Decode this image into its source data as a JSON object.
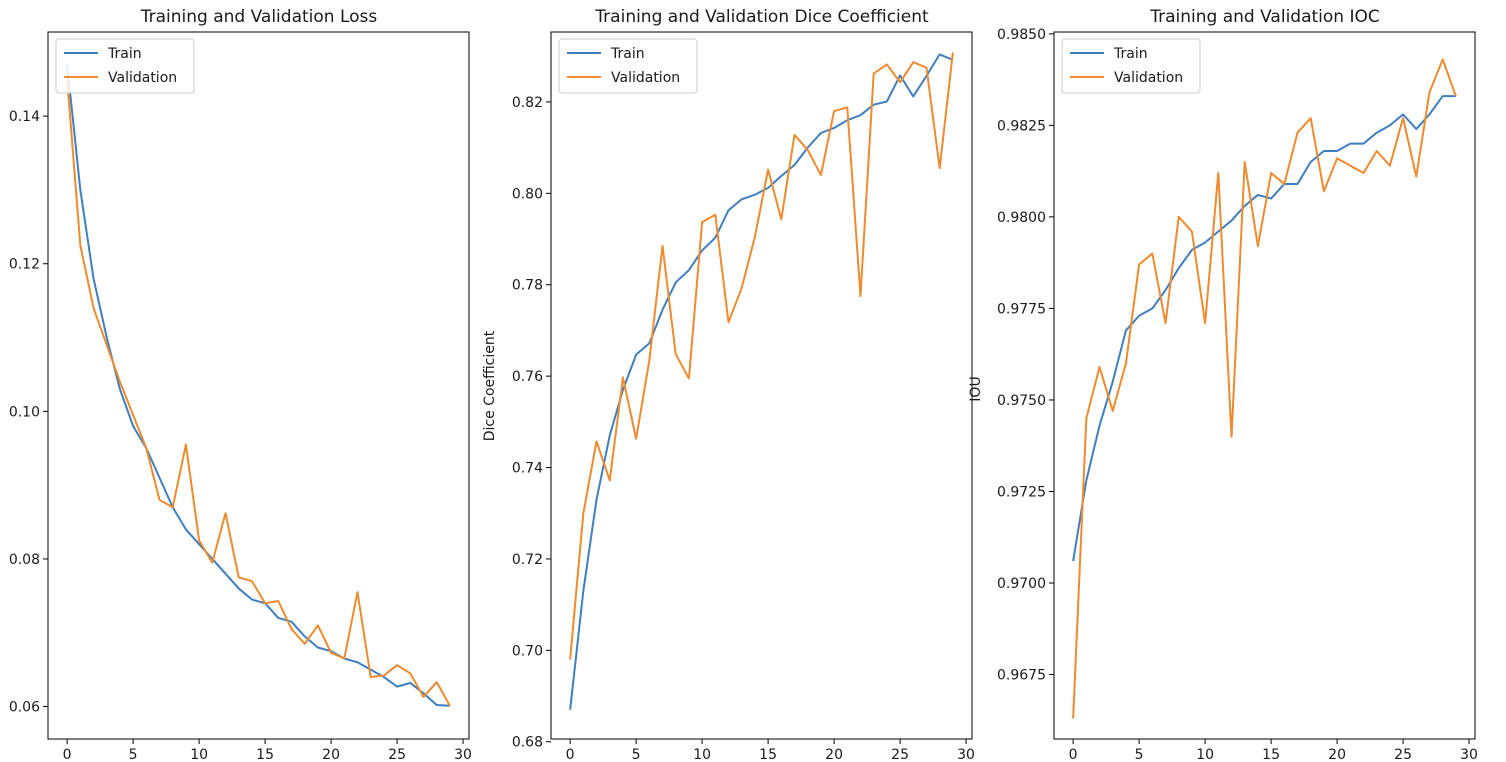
{
  "chart_data": [
    {
      "type": "line",
      "title": "Training and Validation Loss",
      "xlabel": "",
      "ylabel": "",
      "xlim": [
        -1.45,
        30.45
      ],
      "ylim": [
        0.0556,
        0.1514
      ],
      "xticks": [
        0,
        5,
        10,
        15,
        20,
        25,
        30
      ],
      "yticks": [
        0.06,
        0.08,
        0.1,
        0.12,
        0.14
      ],
      "ytick_labels": [
        "0.06",
        "0.08",
        "0.10",
        "0.12",
        "0.14"
      ],
      "legend": "top-left",
      "grid": false,
      "x": [
        0,
        1,
        2,
        3,
        4,
        5,
        6,
        7,
        8,
        9,
        10,
        11,
        12,
        13,
        14,
        15,
        16,
        17,
        18,
        19,
        20,
        21,
        22,
        23,
        24,
        25,
        26,
        27,
        28,
        29
      ],
      "series": [
        {
          "name": "Train",
          "color": "#3f7fbf",
          "values": [
            0.147,
            0.13,
            0.118,
            0.11,
            0.103,
            0.098,
            0.095,
            0.091,
            0.087,
            0.084,
            0.082,
            0.08,
            0.078,
            0.076,
            0.0745,
            0.074,
            0.072,
            0.0715,
            0.0695,
            0.068,
            0.0675,
            0.0665,
            0.066,
            0.065,
            0.064,
            0.0627,
            0.0632,
            0.0618,
            0.0602,
            0.0601
          ]
        },
        {
          "name": "Validation",
          "color": "#ef8a2e",
          "values": [
            0.145,
            0.1225,
            0.114,
            0.109,
            0.104,
            0.0995,
            0.095,
            0.088,
            0.087,
            0.0955,
            0.0825,
            0.0795,
            0.0862,
            0.0775,
            0.077,
            0.074,
            0.0743,
            0.0705,
            0.0685,
            0.071,
            0.0673,
            0.0665,
            0.0755,
            0.064,
            0.0642,
            0.0656,
            0.0645,
            0.0613,
            0.0633,
            0.0601
          ]
        }
      ]
    },
    {
      "type": "line",
      "title": "Training and Validation Dice Coefficient",
      "xlabel": "",
      "ylabel": "Dice Coefficient",
      "xlim": [
        -1.45,
        30.45
      ],
      "ylim": [
        0.6806,
        0.8353
      ],
      "xticks": [
        0,
        5,
        10,
        15,
        20,
        25,
        30
      ],
      "yticks": [
        0.68,
        0.7,
        0.72,
        0.74,
        0.76,
        0.78,
        0.8,
        0.82
      ],
      "ytick_labels": [
        "0.68",
        "0.70",
        "0.72",
        "0.74",
        "0.76",
        "0.78",
        "0.80",
        "0.82"
      ],
      "legend": "top-left",
      "grid": false,
      "x": [
        0,
        1,
        2,
        3,
        4,
        5,
        6,
        7,
        8,
        9,
        10,
        11,
        12,
        13,
        14,
        15,
        16,
        17,
        18,
        19,
        20,
        21,
        22,
        23,
        24,
        25,
        26,
        27,
        28,
        29
      ],
      "series": [
        {
          "name": "Train",
          "color": "#3f7fbf",
          "values": [
            0.687,
            0.713,
            0.733,
            0.747,
            0.757,
            0.7647,
            0.7672,
            0.7745,
            0.7805,
            0.7832,
            0.7875,
            0.7903,
            0.7963,
            0.7987,
            0.7997,
            0.8012,
            0.8038,
            0.8062,
            0.81,
            0.8132,
            0.8143,
            0.816,
            0.8171,
            0.8194,
            0.8201,
            0.8258,
            0.8212,
            0.8257,
            0.8304,
            0.8292
          ]
        },
        {
          "name": "Validation",
          "color": "#ef8a2e",
          "values": [
            0.698,
            0.73,
            0.7457,
            0.7372,
            0.7597,
            0.7463,
            0.7634,
            0.7885,
            0.7648,
            0.7595,
            0.7937,
            0.7953,
            0.7718,
            0.7793,
            0.7905,
            0.8052,
            0.7943,
            0.8128,
            0.8095,
            0.804,
            0.818,
            0.8188,
            0.7775,
            0.8262,
            0.8282,
            0.8243,
            0.8287,
            0.8275,
            0.8055,
            0.8308
          ]
        }
      ]
    },
    {
      "type": "line",
      "title": "Training and Validation IOC",
      "xlabel": "",
      "ylabel": "IOU",
      "xlim": [
        -1.45,
        30.45
      ],
      "ylim": [
        0.96574,
        0.98505
      ],
      "xticks": [
        0,
        5,
        10,
        15,
        20,
        25,
        30
      ],
      "yticks": [
        0.9675,
        0.97,
        0.9725,
        0.975,
        0.9775,
        0.98,
        0.9825,
        0.985
      ],
      "ytick_labels": [
        "0.9675",
        "0.9700",
        "0.9725",
        "0.9750",
        "0.9775",
        "0.9800",
        "0.9825",
        "0.9850"
      ],
      "legend": "top-left",
      "grid": false,
      "x": [
        0,
        1,
        2,
        3,
        4,
        5,
        6,
        7,
        8,
        9,
        10,
        11,
        12,
        13,
        14,
        15,
        16,
        17,
        18,
        19,
        20,
        21,
        22,
        23,
        24,
        25,
        26,
        27,
        28,
        29
      ],
      "series": [
        {
          "name": "Train",
          "color": "#3f7fbf",
          "values": [
            0.9706,
            0.9728,
            0.9743,
            0.9755,
            0.9769,
            0.9773,
            0.9775,
            0.978,
            0.9786,
            0.9791,
            0.9793,
            0.9796,
            0.9799,
            0.9803,
            0.9806,
            0.9805,
            0.9809,
            0.9809,
            0.9815,
            0.9818,
            0.9818,
            0.982,
            0.982,
            0.9823,
            0.9825,
            0.9828,
            0.9824,
            0.9828,
            0.9833,
            0.9833
          ]
        },
        {
          "name": "Validation",
          "color": "#ef8a2e",
          "values": [
            0.9663,
            0.9745,
            0.9759,
            0.9747,
            0.976,
            0.9787,
            0.979,
            0.9771,
            0.98,
            0.9796,
            0.9771,
            0.9812,
            0.974,
            0.9815,
            0.9792,
            0.9812,
            0.9809,
            0.9823,
            0.9827,
            0.9807,
            0.9816,
            0.9814,
            0.9812,
            0.9818,
            0.9814,
            0.9827,
            0.9811,
            0.9834,
            0.9843,
            0.9833
          ]
        }
      ]
    }
  ]
}
